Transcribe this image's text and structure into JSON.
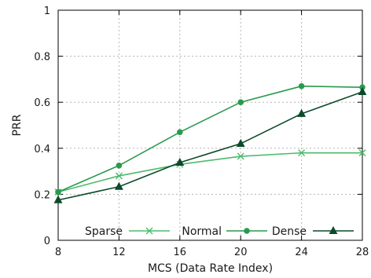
{
  "chart_data": {
    "type": "line",
    "title": "",
    "xlabel": "MCS (Data Rate Index)",
    "ylabel": "PRR",
    "x": [
      8,
      12,
      16,
      20,
      24,
      28
    ],
    "xlim": [
      8,
      28
    ],
    "ylim": [
      0,
      1
    ],
    "xticks": [
      "8",
      "12",
      "16",
      "20",
      "24",
      "28"
    ],
    "yticks": [
      "0",
      "0.2",
      "0.4",
      "0.6",
      "0.8",
      "1"
    ],
    "grid": true,
    "legend_placement": "bottom",
    "series": [
      {
        "name": "Sparse",
        "marker": "x",
        "color": "#4cbb6c",
        "values": [
          0.21,
          0.28,
          0.33,
          0.365,
          0.38,
          0.38
        ]
      },
      {
        "name": "Normal",
        "marker": "circle",
        "color": "#2a9a4e",
        "values": [
          0.21,
          0.325,
          0.47,
          0.6,
          0.67,
          0.665
        ]
      },
      {
        "name": "Dense",
        "marker": "triangle",
        "color": "#0b4a2a",
        "values": [
          0.175,
          0.233,
          0.338,
          0.42,
          0.55,
          0.645
        ]
      }
    ]
  }
}
